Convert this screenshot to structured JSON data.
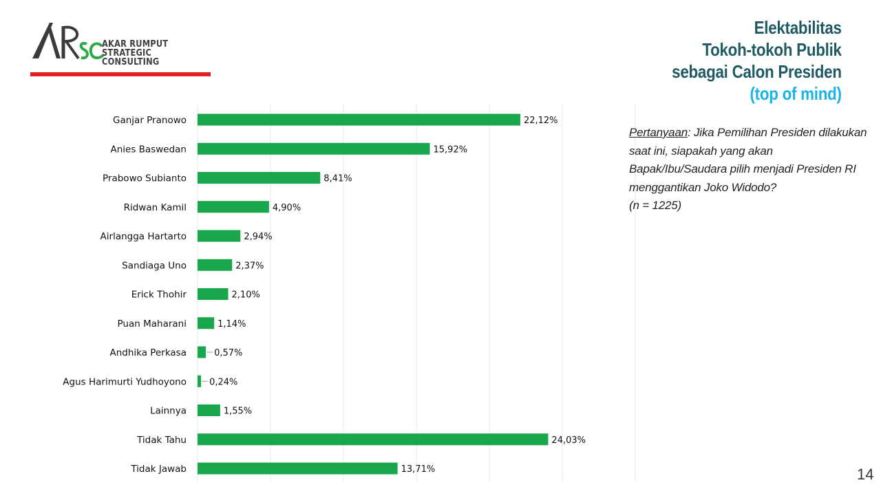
{
  "logo": {
    "mark": "ARSC",
    "name_line1": "AKAR RUMPUT",
    "name_line2": "STRATEGIC CONSULTING",
    "rule_color": "#e31e24"
  },
  "title": {
    "line1": "Elektabilitas",
    "line2": "Tokoh-tokoh Publik",
    "line3": "sebagai Calon Presiden",
    "line4": "(top of mind)",
    "color": "#1f5a63",
    "highlight_color": "#19b3e8"
  },
  "question": {
    "label": "Pertanyaan",
    "text": ": Jika Pemilihan Presiden dilakukan saat ini, siapakah yang akan Bapak/Ibu/Saudara pilih menjadi Presiden RI menggantikan Joko Widodo?",
    "sample": "(n = 1225)"
  },
  "page_number": "14",
  "chart_data": {
    "type": "bar",
    "orientation": "horizontal",
    "categories": [
      "Ganjar Pranowo",
      "Anies Baswedan",
      "Prabowo Subianto",
      "Ridwan Kamil",
      "Airlangga Hartarto",
      "Sandiaga Uno",
      "Erick Thohir",
      "Puan Maharani",
      "Andhika Perkasa",
      "Agus Harimurti Yudhoyono",
      "Lainnya",
      "Tidak Tahu",
      "Tidak Jawab"
    ],
    "values": [
      22.12,
      15.92,
      8.41,
      4.9,
      2.94,
      2.37,
      2.1,
      1.14,
      0.57,
      0.24,
      1.55,
      24.03,
      13.71
    ],
    "value_labels": [
      "22,12%",
      "15,92%",
      "8,41%",
      "4,90%",
      "2,94%",
      "2,37%",
      "2,10%",
      "1,14%",
      "0,57%",
      "0,24%",
      "1,55%",
      "24,03%",
      "13,71%"
    ],
    "xlim": [
      0,
      30
    ],
    "grid": true,
    "bar_color": "#1aa64a",
    "grid_color": "#d6ece3"
  }
}
